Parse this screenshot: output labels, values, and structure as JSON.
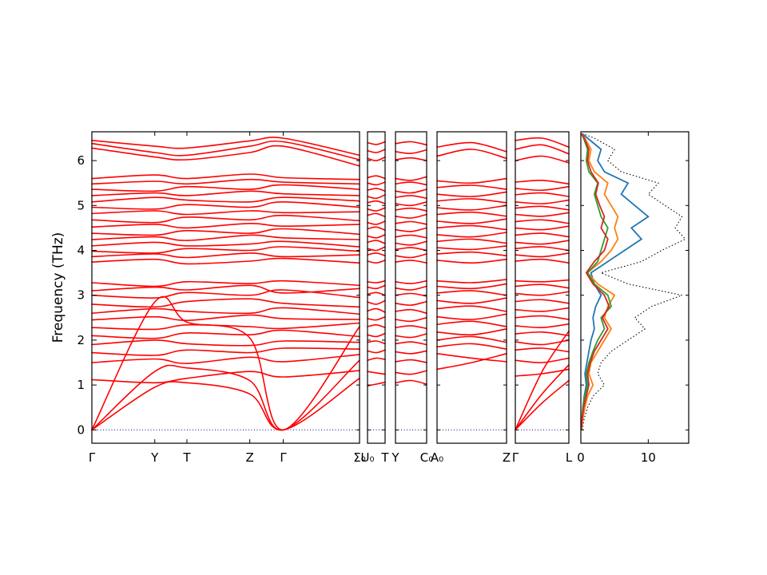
{
  "figure": {
    "background": "#ffffff"
  },
  "chart_data": {
    "type": "line",
    "title": "",
    "ylabel": "Frequency (THz)",
    "ylim": [
      -0.3,
      6.65
    ],
    "yticks": [
      0,
      1,
      2,
      3,
      4,
      5,
      6
    ],
    "band_color": "#ff0000",
    "zero_line_color": "#00008b",
    "segments": [
      {
        "name": "Gamma-Y-T-Z-Gamma-Sigma0",
        "tick_labels": [
          "Γ",
          "Y",
          "T",
          "Z",
          "Γ",
          "Σ₀"
        ],
        "tick_pos": [
          0,
          0.235,
          0.355,
          0.59,
          0.715,
          1.0
        ],
        "sample_pos": [
          0,
          0.235,
          0.355,
          0.59,
          0.715,
          1.0
        ],
        "bands": [
          [
            0.0,
            0.95,
            1.05,
            0.8,
            0.0,
            1.15
          ],
          [
            0.0,
            1.3,
            1.38,
            1.1,
            0.0,
            1.55
          ],
          [
            0.0,
            2.85,
            2.4,
            2.05,
            0.0,
            2.3
          ],
          [
            1.12,
            1.05,
            1.15,
            1.3,
            1.18,
            1.32
          ],
          [
            1.5,
            1.58,
            1.48,
            1.62,
            1.52,
            1.68
          ],
          [
            1.72,
            1.66,
            1.78,
            1.72,
            1.82,
            1.8
          ],
          [
            1.9,
            2.0,
            1.92,
            1.88,
            1.98,
            1.95
          ],
          [
            2.1,
            2.04,
            2.16,
            2.12,
            2.22,
            2.08
          ],
          [
            2.28,
            2.24,
            2.34,
            2.3,
            2.26,
            2.38
          ],
          [
            2.45,
            2.52,
            2.44,
            2.56,
            2.48,
            2.46
          ],
          [
            2.6,
            2.7,
            2.64,
            2.6,
            2.72,
            2.58
          ],
          [
            2.8,
            2.74,
            2.86,
            2.92,
            2.82,
            2.74
          ],
          [
            3.0,
            2.94,
            3.06,
            3.0,
            3.12,
            2.95
          ],
          [
            3.1,
            3.18,
            3.12,
            3.22,
            3.05,
            3.15
          ],
          [
            3.28,
            3.2,
            3.3,
            3.26,
            3.32,
            3.22
          ],
          [
            3.74,
            3.8,
            3.7,
            3.76,
            3.82,
            3.72
          ],
          [
            3.86,
            3.92,
            3.84,
            3.94,
            3.86,
            3.9
          ],
          [
            3.98,
            3.94,
            4.04,
            4.0,
            4.08,
            3.98
          ],
          [
            4.1,
            4.18,
            4.1,
            4.14,
            4.2,
            4.08
          ],
          [
            4.24,
            4.3,
            4.22,
            4.34,
            4.28,
            4.24
          ],
          [
            4.38,
            4.34,
            4.44,
            4.38,
            4.48,
            4.36
          ],
          [
            4.52,
            4.58,
            4.5,
            4.6,
            4.54,
            4.58
          ],
          [
            4.68,
            4.62,
            4.74,
            4.68,
            4.78,
            4.66
          ],
          [
            4.82,
            4.88,
            4.8,
            4.88,
            4.84,
            4.86
          ],
          [
            4.96,
            4.92,
            5.02,
            4.96,
            5.08,
            4.96
          ],
          [
            5.08,
            5.18,
            5.12,
            5.08,
            5.18,
            5.1
          ],
          [
            5.22,
            5.28,
            5.22,
            5.32,
            5.26,
            5.22
          ],
          [
            5.36,
            5.32,
            5.42,
            5.36,
            5.46,
            5.36
          ],
          [
            5.48,
            5.54,
            5.48,
            5.58,
            5.52,
            5.48
          ],
          [
            5.6,
            5.68,
            5.6,
            5.7,
            5.62,
            5.58
          ],
          [
            6.28,
            6.08,
            6.02,
            6.18,
            6.32,
            5.88
          ],
          [
            6.38,
            6.18,
            6.12,
            6.32,
            6.42,
            6.02
          ],
          [
            6.45,
            6.32,
            6.28,
            6.44,
            6.5,
            6.12
          ]
        ]
      },
      {
        "name": "U0-T",
        "tick_labels": [
          "U₀",
          "T"
        ],
        "tick_pos": [
          0,
          1.0
        ],
        "sample_pos": [
          0,
          0.5,
          1.0
        ],
        "bands": [
          [
            0.98,
            1.02,
            1.06
          ],
          [
            1.3,
            1.27,
            1.24
          ],
          [
            1.55,
            1.6,
            1.57
          ],
          [
            1.76,
            1.72,
            1.78
          ],
          [
            1.95,
            1.98,
            1.92
          ],
          [
            2.12,
            2.08,
            2.15
          ],
          [
            2.3,
            2.34,
            2.28
          ],
          [
            2.48,
            2.45,
            2.52
          ],
          [
            2.65,
            2.7,
            2.62
          ],
          [
            2.85,
            2.8,
            2.88
          ],
          [
            3.02,
            3.06,
            3.0
          ],
          [
            3.18,
            3.15,
            3.22
          ],
          [
            3.3,
            3.28,
            3.32
          ],
          [
            3.76,
            3.72,
            3.78
          ],
          [
            3.9,
            3.94,
            3.88
          ],
          [
            4.04,
            4.0,
            4.08
          ],
          [
            4.18,
            4.22,
            4.15
          ],
          [
            4.32,
            4.28,
            4.35
          ],
          [
            4.48,
            4.52,
            4.45
          ],
          [
            4.62,
            4.58,
            4.65
          ],
          [
            4.78,
            4.82,
            4.75
          ],
          [
            4.92,
            4.88,
            4.95
          ],
          [
            5.06,
            5.1,
            5.04
          ],
          [
            5.2,
            5.16,
            5.24
          ],
          [
            5.34,
            5.38,
            5.32
          ],
          [
            5.5,
            5.46,
            5.52
          ],
          [
            5.62,
            5.66,
            5.6
          ],
          [
            6.05,
            6.0,
            6.08
          ],
          [
            6.22,
            6.18,
            6.25
          ],
          [
            6.4,
            6.36,
            6.42
          ]
        ]
      },
      {
        "name": "Y-C0",
        "tick_labels": [
          "Y",
          "C₀"
        ],
        "tick_pos": [
          0,
          1.0
        ],
        "sample_pos": [
          0,
          0.5,
          1.0
        ],
        "bands": [
          [
            1.05,
            1.1,
            1.02
          ],
          [
            1.28,
            1.24,
            1.32
          ],
          [
            1.52,
            1.56,
            1.5
          ],
          [
            1.74,
            1.7,
            1.76
          ],
          [
            1.92,
            1.96,
            1.9
          ],
          [
            2.1,
            2.06,
            2.14
          ],
          [
            2.28,
            2.32,
            2.26
          ],
          [
            2.46,
            2.42,
            2.5
          ],
          [
            2.64,
            2.68,
            2.6
          ],
          [
            2.82,
            2.78,
            2.86
          ],
          [
            3.0,
            3.04,
            2.98
          ],
          [
            3.16,
            3.12,
            3.2
          ],
          [
            3.3,
            3.26,
            3.32
          ],
          [
            3.74,
            3.78,
            3.72
          ],
          [
            3.88,
            3.84,
            3.92
          ],
          [
            4.02,
            4.06,
            4.0
          ],
          [
            4.16,
            4.12,
            4.2
          ],
          [
            4.3,
            4.34,
            4.28
          ],
          [
            4.46,
            4.42,
            4.5
          ],
          [
            4.6,
            4.64,
            4.58
          ],
          [
            4.76,
            4.72,
            4.8
          ],
          [
            4.9,
            4.94,
            4.88
          ],
          [
            5.04,
            5.0,
            5.08
          ],
          [
            5.18,
            5.22,
            5.16
          ],
          [
            5.32,
            5.28,
            5.36
          ],
          [
            5.48,
            5.52,
            5.46
          ],
          [
            5.6,
            5.56,
            5.64
          ],
          [
            6.02,
            6.06,
            6.0
          ],
          [
            6.2,
            6.16,
            6.24
          ],
          [
            6.38,
            6.42,
            6.35
          ]
        ]
      },
      {
        "name": "A0-Z",
        "tick_labels": [
          "A₀",
          "Z"
        ],
        "tick_pos": [
          0,
          1.0
        ],
        "sample_pos": [
          0,
          0.5,
          1.0
        ],
        "bands": [
          [
            1.35,
            1.5,
            1.7
          ],
          [
            1.7,
            1.6,
            1.52
          ],
          [
            1.85,
            1.92,
            1.8
          ],
          [
            2.0,
            2.08,
            1.95
          ],
          [
            2.18,
            2.12,
            2.25
          ],
          [
            2.35,
            2.42,
            2.3
          ],
          [
            2.52,
            2.46,
            2.58
          ],
          [
            2.7,
            2.76,
            2.64
          ],
          [
            2.88,
            2.82,
            2.94
          ],
          [
            3.05,
            3.1,
            3.0
          ],
          [
            3.2,
            3.15,
            3.25
          ],
          [
            3.32,
            3.28,
            3.35
          ],
          [
            3.78,
            3.72,
            3.8
          ],
          [
            3.92,
            3.96,
            3.88
          ],
          [
            4.06,
            4.02,
            4.1
          ],
          [
            4.2,
            4.25,
            4.16
          ],
          [
            4.35,
            4.3,
            4.4
          ],
          [
            4.5,
            4.55,
            4.46
          ],
          [
            4.65,
            4.6,
            4.7
          ],
          [
            4.8,
            4.85,
            4.76
          ],
          [
            4.95,
            4.9,
            5.0
          ],
          [
            5.1,
            5.15,
            5.06
          ],
          [
            5.25,
            5.2,
            5.3
          ],
          [
            5.4,
            5.45,
            5.36
          ],
          [
            5.55,
            5.5,
            5.6
          ],
          [
            6.1,
            6.25,
            6.05
          ],
          [
            6.3,
            6.4,
            6.2
          ]
        ]
      },
      {
        "name": "Gamma-L",
        "tick_labels": [
          "Γ",
          "L"
        ],
        "tick_pos": [
          0,
          1.0
        ],
        "sample_pos": [
          0,
          0.5,
          1.0
        ],
        "bands": [
          [
            0.0,
            0.6,
            1.1
          ],
          [
            0.0,
            0.8,
            1.45
          ],
          [
            0.0,
            1.3,
            2.2
          ],
          [
            1.2,
            1.25,
            1.35
          ],
          [
            1.55,
            1.5,
            1.6
          ],
          [
            1.78,
            1.82,
            1.74
          ],
          [
            1.96,
            1.9,
            2.0
          ],
          [
            2.14,
            2.18,
            2.1
          ],
          [
            2.32,
            2.28,
            2.36
          ],
          [
            2.5,
            2.54,
            2.46
          ],
          [
            2.68,
            2.64,
            2.72
          ],
          [
            2.86,
            2.9,
            2.82
          ],
          [
            3.04,
            3.0,
            3.08
          ],
          [
            3.2,
            3.24,
            3.16
          ],
          [
            3.32,
            3.3,
            3.34
          ],
          [
            3.76,
            3.8,
            3.72
          ],
          [
            3.9,
            3.86,
            3.94
          ],
          [
            4.04,
            4.08,
            4.0
          ],
          [
            4.18,
            4.14,
            4.22
          ],
          [
            4.34,
            4.38,
            4.3
          ],
          [
            4.5,
            4.46,
            4.54
          ],
          [
            4.64,
            4.68,
            4.6
          ],
          [
            4.8,
            4.76,
            4.84
          ],
          [
            4.94,
            4.98,
            4.9
          ],
          [
            5.08,
            5.04,
            5.12
          ],
          [
            5.24,
            5.28,
            5.2
          ],
          [
            5.38,
            5.34,
            5.42
          ],
          [
            5.52,
            5.56,
            5.48
          ],
          [
            6.0,
            6.1,
            5.95
          ],
          [
            6.25,
            6.35,
            6.15
          ],
          [
            6.45,
            6.5,
            6.3
          ]
        ]
      }
    ],
    "dos": {
      "xtick_labels": [
        "0",
        "10"
      ],
      "xticks": [
        0,
        10
      ],
      "xlim": [
        0,
        16
      ],
      "freqs": [
        0,
        0.25,
        0.5,
        0.75,
        1,
        1.25,
        1.5,
        1.75,
        2,
        2.25,
        2.5,
        2.75,
        3,
        3.25,
        3.5,
        3.75,
        4,
        4.25,
        4.5,
        4.75,
        5,
        5.25,
        5.5,
        5.75,
        6,
        6.25,
        6.5,
        6.6
      ],
      "series": [
        {
          "name": "total-dos",
          "style": "dotted",
          "color": "#000000",
          "values": [
            0.2,
            0.5,
            1.0,
            1.8,
            3.5,
            2.5,
            3.0,
            4.5,
            7.0,
            9.5,
            8.0,
            10.5,
            15.0,
            7.0,
            3.0,
            9.0,
            12.0,
            15.5,
            14.0,
            15.0,
            12.5,
            10.0,
            11.5,
            6.0,
            4.0,
            5.0,
            2.0,
            0.3
          ]
        },
        {
          "name": "pdos-1",
          "style": "solid",
          "color": "#1f77b4",
          "values": [
            0.1,
            0.2,
            0.3,
            0.5,
            0.8,
            0.6,
            0.9,
            1.2,
            1.5,
            2.0,
            1.8,
            2.2,
            3.0,
            2.0,
            1.5,
            4.0,
            6.5,
            9.0,
            7.5,
            10.0,
            8.0,
            6.0,
            7.0,
            3.5,
            2.5,
            3.0,
            1.0,
            0.2
          ]
        },
        {
          "name": "pdos-2",
          "style": "solid",
          "color": "#ff7f0e",
          "values": [
            0.1,
            0.3,
            0.6,
            1.0,
            1.8,
            1.2,
            1.5,
            2.5,
            3.5,
            4.5,
            3.5,
            4.0,
            5.0,
            2.5,
            1.0,
            3.0,
            4.5,
            5.5,
            5.0,
            5.5,
            4.5,
            3.5,
            4.0,
            2.0,
            1.2,
            1.5,
            0.6,
            0.1
          ]
        },
        {
          "name": "pdos-3",
          "style": "solid",
          "color": "#2ca02c",
          "values": [
            0.05,
            0.15,
            0.3,
            0.6,
            1.0,
            0.8,
            1.2,
            1.8,
            2.5,
            3.5,
            3.0,
            4.5,
            4.0,
            2.0,
            1.0,
            2.5,
            3.0,
            3.5,
            4.0,
            3.0,
            2.5,
            2.0,
            2.5,
            1.2,
            0.8,
            1.0,
            0.4,
            0.1
          ]
        },
        {
          "name": "pdos-4",
          "style": "solid",
          "color": "#d62728",
          "values": [
            0.05,
            0.2,
            0.4,
            0.8,
            1.2,
            1.0,
            1.4,
            2.0,
            3.0,
            4.0,
            3.2,
            4.2,
            3.5,
            1.8,
            0.8,
            2.0,
            3.5,
            4.0,
            3.0,
            3.5,
            2.8,
            2.2,
            2.6,
            1.5,
            1.0,
            1.2,
            0.5,
            0.1
          ]
        }
      ]
    }
  }
}
